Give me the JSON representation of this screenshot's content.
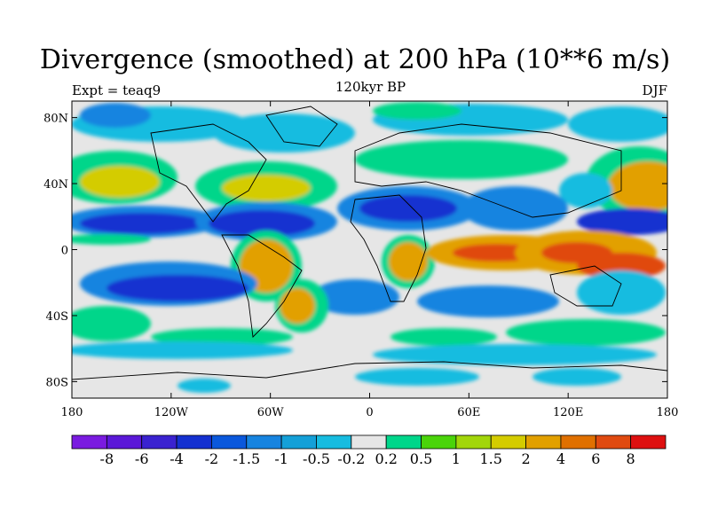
{
  "title": "Divergence (smoothed) at 200 hPa (10**6 m/s)",
  "left_label": "Expt = teaq9",
  "center_label": "120kyr BP",
  "right_label": "DJF",
  "x_ticks": [
    "180",
    "120W",
    "60W",
    "0",
    "60E",
    "120E",
    "180"
  ],
  "y_ticks": [
    "80N",
    "40N",
    "0",
    "40S",
    "80S"
  ],
  "colorbar": {
    "colors": [
      "#7a1be0",
      "#5b18d8",
      "#3a22d0",
      "#1430d0",
      "#0a58dc",
      "#1784e0",
      "#14a0d8",
      "#17bce0",
      "#e6e6e6",
      "#00d68a",
      "#4ad40a",
      "#a2d60a",
      "#d4cc00",
      "#e2a000",
      "#e07000",
      "#e04a10",
      "#de1010"
    ],
    "labels": [
      "-8",
      "-6",
      "-4",
      "-2",
      "-1.5",
      "-1",
      "-0.5",
      "-0.2",
      "0.2",
      "0.5",
      "1",
      "1.5",
      "2",
      "4",
      "6",
      "8"
    ]
  },
  "field_colors": {
    "neutral": "#e6e6e6",
    "blue_light": "#17bce0",
    "blue_mid": "#1784e0",
    "blue_dark": "#1430d0",
    "purple": "#3a22d0",
    "green": "#00d68a",
    "green_dark": "#4ad40a",
    "yellow": "#d4cc00",
    "orange": "#e2a000",
    "red": "#e04a10"
  }
}
